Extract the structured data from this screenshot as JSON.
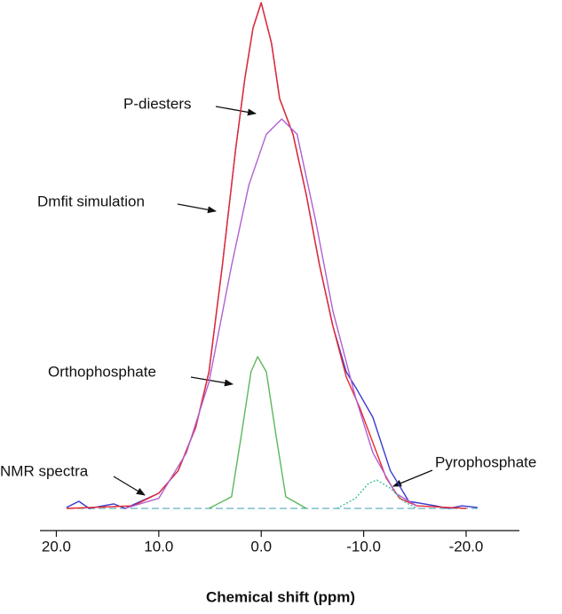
{
  "chart_data": {
    "type": "line",
    "xlabel": "Chemical shift (ppm)",
    "xlim": [
      21.6,
      -25.2
    ],
    "ylim": [
      0,
      100
    ],
    "xticks": [
      {
        "value": 20,
        "label": "20.0"
      },
      {
        "value": 10,
        "label": "10.0"
      },
      {
        "value": 0,
        "label": "0.0"
      },
      {
        "value": -10,
        "label": "-10.0"
      },
      {
        "value": -20,
        "label": "-20.0"
      }
    ],
    "series": [
      {
        "name": "NMR spectra",
        "color": "#3a3ad0",
        "x": [
          19,
          17.8,
          16.8,
          14.4,
          13.3,
          10,
          8.1,
          6.4,
          5.1,
          3.8,
          2.5,
          1.6,
          0.8,
          0,
          -1,
          -1.8,
          -3.1,
          -4.4,
          -5.7,
          -7,
          -8.3,
          -9.2,
          -10.9,
          -12.6,
          -14.4,
          -17,
          -18.3,
          -19.6,
          -21.1
        ],
        "values": [
          0.2,
          1.4,
          0,
          0.9,
          0,
          3,
          7.5,
          16,
          27,
          48,
          71,
          85,
          95,
          100,
          92,
          81,
          74,
          62,
          48,
          36,
          27,
          24,
          18,
          7.5,
          1.4,
          0.5,
          0,
          0.5,
          0.2
        ]
      },
      {
        "name": "Dmfit simulation",
        "color": "#e8282d",
        "x": [
          19,
          12.5,
          10,
          8.1,
          6.4,
          5.1,
          3.8,
          2.5,
          1.6,
          0.8,
          0,
          -1,
          -1.8,
          -3.1,
          -4.4,
          -5.7,
          -7,
          -8.3,
          -9.6,
          -10.9,
          -12.2,
          -13.5,
          -15.2,
          -20
        ],
        "values": [
          0,
          0.5,
          3,
          7.5,
          16,
          27,
          48,
          71,
          85,
          95,
          100,
          92,
          81,
          74,
          62,
          48,
          36,
          26,
          20,
          13,
          6,
          2,
          0.5,
          0
        ]
      },
      {
        "name": "P-diesters",
        "color": "#b060d0",
        "x": [
          13.3,
          10,
          7.3,
          5.1,
          2.9,
          1.2,
          -0.5,
          -2,
          -3.5,
          -5.3,
          -7,
          -9.2,
          -10.9,
          -13.1,
          -15.2
        ],
        "values": [
          0,
          2,
          11,
          25,
          48,
          64,
          74,
          77,
          74,
          57,
          39,
          22,
          11,
          3,
          0.5
        ]
      },
      {
        "name": "Orthophosphate",
        "color": "#5cb85c",
        "x": [
          5.1,
          2.9,
          1.9,
          1,
          0.35,
          -0.5,
          -1.4,
          -2.4,
          -4.4
        ],
        "values": [
          0,
          2.3,
          15,
          27,
          30,
          27,
          15,
          2.3,
          0
        ]
      },
      {
        "name": "Pyrophosphate",
        "color": "#40c0a0",
        "dash": "2,2",
        "x": [
          -7.4,
          -9.2,
          -10.5,
          -11.3,
          -12.6,
          -13.9,
          -15.2
        ],
        "values": [
          0,
          2,
          5,
          5.6,
          4,
          1.4,
          0
        ]
      }
    ]
  }
}
